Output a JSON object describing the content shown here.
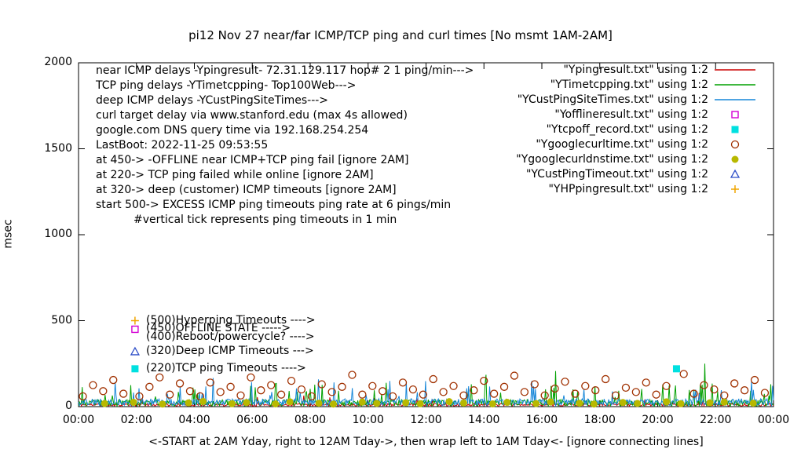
{
  "chart_data": {
    "type": "line",
    "title": "pi12 Nov 27  near/far ICMP/TCP ping and curl times [No msmt 1AM-2AM]",
    "ylabel": "msec",
    "xlabel": "<-START at 2AM Yday, right to 12AM Tday->, then wrap left to 1AM Tday<- [ignore connecting lines]",
    "ylim": [
      0,
      2000
    ],
    "xlim_hours": [
      0,
      24
    ],
    "yticks": [
      0,
      500,
      1000,
      1500,
      2000
    ],
    "xticks": [
      "00:00",
      "02:00",
      "04:00",
      "06:00",
      "08:00",
      "10:00",
      "12:00",
      "14:00",
      "16:00",
      "18:00",
      "20:00",
      "22:00",
      "00:00"
    ],
    "grid": false,
    "legend_position": "top-right",
    "info_lines": [
      "near ICMP delays -Ypingresult- 72.31.129.117 hop# 2 1 ping/min--->",
      "TCP ping delays -YTimetcpping- Top100Web--->",
      "deep ICMP delays -YCustPingSiteTimes--->",
      "curl target delay via www.stanford.edu (max 4s allowed)",
      "google.com DNS query time via 192.168.254.254",
      "LastBoot: 2022-11-25 09:53:55",
      "at 450-> -OFFLINE near ICMP+TCP ping fail [ignore 2AM]",
      "at 220-> TCP ping failed while online [ignore 2AM]",
      "at 320-> deep (customer) ICMP timeouts [ignore 2AM]",
      "start 500-> EXCESS ICMP ping timeouts ping rate at 6 pings/min",
      "#vertical tick represents ping timeouts in 1 min"
    ],
    "annotations": [
      {
        "y": 500,
        "label": "(500)Hyperping Timeouts ---->"
      },
      {
        "y": 450,
        "label": "(450)OFFLINE STATE ----->"
      },
      {
        "y": 400,
        "label": "(400)Reboot/powercycle? ---->"
      },
      {
        "y": 320,
        "label": "(320)Deep ICMP Timeouts --->"
      },
      {
        "y": 220,
        "label": "(220)TCP ping Timeouts ---->"
      }
    ],
    "series": [
      {
        "name": "near-icmp",
        "legend": "\"Ypingresult.txt\" using 1:2",
        "style": "line",
        "color": "#cc0000",
        "gen": {
          "seed": 11,
          "n": 720,
          "base": 3,
          "jitter": 16,
          "spike_prob": 0.02,
          "spike_min": 25,
          "spike_max": 60,
          "spike2_prob": 0.002,
          "spike2_min": 60,
          "spike2_max": 90
        }
      },
      {
        "name": "tcp-ping",
        "legend": "\"YTimetcpping.txt\" using 1:2",
        "style": "line",
        "color": "#00a000",
        "gen": {
          "seed": 23,
          "n": 760,
          "base": 3,
          "jitter": 38,
          "spike_prob": 0.06,
          "spike_min": 50,
          "spike_max": 140,
          "spike2_prob": 0.006,
          "spike2_min": 180,
          "spike2_max": 260
        }
      },
      {
        "name": "deep-icmp",
        "legend": "\"YCustPingSiteTimes.txt\" using 1:2",
        "style": "line",
        "color": "#1586d8",
        "gen": {
          "seed": 37,
          "n": 760,
          "base": 6,
          "jitter": 40,
          "spike_prob": 0.05,
          "spike_min": 60,
          "spike_max": 150,
          "spike2_prob": 0.003,
          "spike2_min": 150,
          "spike2_max": 175
        }
      },
      {
        "name": "offline",
        "legend": "\"Yofflineresult.txt\" using 1:2",
        "style": "open-square",
        "color": "#d400d4",
        "points": [
          [
            1.95,
            450
          ]
        ]
      },
      {
        "name": "tcpoff-record",
        "legend": "\"Ytcpoff_record.txt\" using 1:2",
        "style": "filled-square",
        "color": "#00e0e0",
        "points": [
          [
            1.95,
            220
          ],
          [
            20.65,
            220
          ]
        ]
      },
      {
        "name": "google-curl-time",
        "legend": "\"Ygooglecurltime.txt\" using 1:2",
        "style": "open-circle",
        "color": "#a03000",
        "points": [
          [
            0.15,
            60
          ],
          [
            0.5,
            125
          ],
          [
            0.85,
            90
          ],
          [
            1.2,
            155
          ],
          [
            1.55,
            75
          ],
          [
            2.1,
            60
          ],
          [
            2.45,
            115
          ],
          [
            2.8,
            170
          ],
          [
            3.15,
            70
          ],
          [
            3.5,
            135
          ],
          [
            3.85,
            90
          ],
          [
            4.2,
            60
          ],
          [
            4.55,
            140
          ],
          [
            4.9,
            85
          ],
          [
            5.25,
            115
          ],
          [
            5.6,
            65
          ],
          [
            5.95,
            170
          ],
          [
            6.3,
            95
          ],
          [
            6.65,
            125
          ],
          [
            7.0,
            70
          ],
          [
            7.35,
            150
          ],
          [
            7.7,
            100
          ],
          [
            8.05,
            60
          ],
          [
            8.4,
            130
          ],
          [
            8.75,
            85
          ],
          [
            9.1,
            115
          ],
          [
            9.45,
            185
          ],
          [
            9.8,
            70
          ],
          [
            10.15,
            120
          ],
          [
            10.5,
            90
          ],
          [
            10.85,
            60
          ],
          [
            11.2,
            140
          ],
          [
            11.55,
            100
          ],
          [
            11.9,
            70
          ],
          [
            12.25,
            160
          ],
          [
            12.6,
            85
          ],
          [
            12.95,
            120
          ],
          [
            13.3,
            65
          ],
          [
            13.65,
            95
          ],
          [
            14.0,
            150
          ],
          [
            14.35,
            75
          ],
          [
            14.7,
            115
          ],
          [
            15.05,
            180
          ],
          [
            15.4,
            85
          ],
          [
            15.75,
            130
          ],
          [
            16.1,
            65
          ],
          [
            16.45,
            105
          ],
          [
            16.8,
            145
          ],
          [
            17.15,
            75
          ],
          [
            17.5,
            120
          ],
          [
            17.85,
            95
          ],
          [
            18.2,
            160
          ],
          [
            18.55,
            65
          ],
          [
            18.9,
            110
          ],
          [
            19.25,
            85
          ],
          [
            19.6,
            140
          ],
          [
            19.95,
            70
          ],
          [
            20.3,
            120
          ],
          [
            20.9,
            190
          ],
          [
            21.25,
            75
          ],
          [
            21.6,
            125
          ],
          [
            21.95,
            100
          ],
          [
            22.3,
            65
          ],
          [
            22.65,
            135
          ],
          [
            23.0,
            95
          ],
          [
            23.35,
            155
          ],
          [
            23.7,
            80
          ]
        ]
      },
      {
        "name": "google-curl-dns-time",
        "legend": "\"Ygooglecurldnstime.txt\" using 1:2",
        "style": "filled-circle",
        "color": "#b8b800",
        "points": [
          [
            0.9,
            18
          ],
          [
            1.9,
            25
          ],
          [
            2.9,
            15
          ],
          [
            3.8,
            22
          ],
          [
            4.3,
            30
          ],
          [
            5.3,
            17
          ],
          [
            5.8,
            24
          ],
          [
            6.8,
            16
          ],
          [
            7.3,
            28
          ],
          [
            8.3,
            20
          ],
          [
            8.8,
            15
          ],
          [
            9.8,
            26
          ],
          [
            10.3,
            19
          ],
          [
            11.3,
            23
          ],
          [
            11.8,
            17
          ],
          [
            12.8,
            29
          ],
          [
            13.3,
            21
          ],
          [
            14.3,
            16
          ],
          [
            14.8,
            25
          ],
          [
            15.8,
            18
          ],
          [
            16.3,
            27
          ],
          [
            17.3,
            20
          ],
          [
            17.8,
            15
          ],
          [
            18.8,
            24
          ],
          [
            19.3,
            19
          ],
          [
            20.3,
            28
          ],
          [
            20.8,
            17
          ],
          [
            21.8,
            22
          ],
          [
            22.3,
            26
          ],
          [
            23.3,
            20
          ]
        ]
      },
      {
        "name": "cust-ping-timeout",
        "legend": "\"YCustPingTimeout.txt\" using 1:2",
        "style": "open-triangle",
        "color": "#3050c8",
        "points": [
          [
            1.95,
            320
          ]
        ]
      },
      {
        "name": "hp-ping-result",
        "legend": "\"YHPpingresult.txt\" using 1:2",
        "style": "plus",
        "color": "#f0a500",
        "points": [
          [
            1.95,
            500
          ]
        ]
      }
    ]
  }
}
